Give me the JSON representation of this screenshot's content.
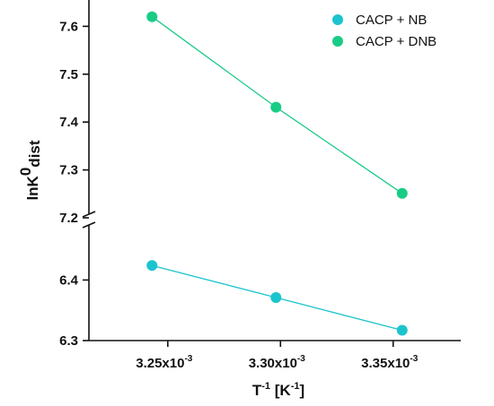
{
  "chart_data": {
    "type": "scatter",
    "xlabel": {
      "base": "T",
      "exponent": "-1",
      "unit_open": " [K",
      "unit_exponent": "-1",
      "unit_close": "]"
    },
    "ylabel": {
      "base": "lnK",
      "superscript": "0",
      "subscript": "dist"
    },
    "x_ticks": [
      {
        "value": 0.00325,
        "mantissa": "3.25x10",
        "exponent": "-3"
      },
      {
        "value": 0.0033,
        "mantissa": "3.30x10",
        "exponent": "-3"
      },
      {
        "value": 0.00335,
        "mantissa": "3.35x10",
        "exponent": "-3"
      }
    ],
    "y_ticks_upper": [
      "7.6",
      "7.5",
      "7.4",
      "7.3",
      "7.2"
    ],
    "y_ticks_lower": [
      "6.4",
      "6.3"
    ],
    "axis_break": true,
    "xlim": [
      0.003215,
      0.00338
    ],
    "ylim_lower": [
      6.3,
      6.445
    ],
    "ylim_upper": [
      7.2,
      7.655
    ],
    "legend_position": "top-right",
    "series": [
      {
        "name": "CACP + NB",
        "color": "#1bc4cd",
        "x": [
          0.003243,
          0.003298,
          0.003354
        ],
        "y": [
          6.424,
          6.371,
          6.317
        ]
      },
      {
        "name": "CACP + DNB",
        "color": "#19cc86",
        "x": [
          0.003243,
          0.003298,
          0.003354
        ],
        "y": [
          7.62,
          7.431,
          7.251
        ]
      }
    ]
  }
}
